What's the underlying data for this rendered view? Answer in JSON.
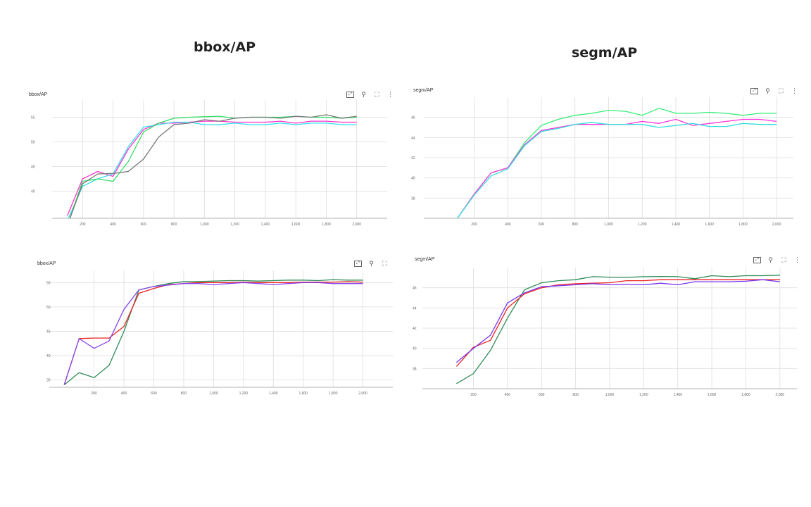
{
  "headings": {
    "left": "bbox/AP",
    "right": "segm/AP"
  },
  "toolbar_icons": [
    "fullscreen-icon",
    "pin-icon",
    "fit-domain-icon",
    "more-icon"
  ],
  "chart_data": [
    {
      "type": "line",
      "title": "bbox/AP",
      "x_ticks": [
        200,
        400,
        600,
        800,
        1000,
        1200,
        1400,
        1600,
        1800,
        2000
      ],
      "x_tick_labels": [
        "200",
        "400",
        "600",
        "800",
        "1,000",
        "1,200",
        "1,400",
        "1,600",
        "1,800",
        "2,000"
      ],
      "y_ticks": [
        40,
        45,
        50,
        55
      ],
      "y_tick_labels": [
        "40",
        "45",
        "50",
        "55"
      ],
      "xlim": [
        0,
        2200
      ],
      "ylim": [
        34.5,
        58.5
      ],
      "grid": true,
      "colors": [
        "#ff33cc",
        "#33e0ee",
        "#33dd66",
        "#777777"
      ],
      "x": [
        100,
        200,
        300,
        400,
        500,
        600,
        700,
        800,
        900,
        1000,
        1100,
        1200,
        1300,
        1400,
        1500,
        1600,
        1700,
        1800,
        1900,
        2000
      ],
      "series": [
        {
          "values": [
            35,
            42.5,
            44,
            43,
            48.5,
            52.5,
            53.8,
            53.8,
            54,
            54.2,
            54.2,
            54,
            54,
            54,
            54.2,
            53.8,
            54.2,
            54.2,
            54,
            54
          ]
        },
        {
          "values": [
            34,
            41,
            42.5,
            43.5,
            49,
            53,
            53.5,
            54,
            54,
            53.5,
            53.5,
            53.8,
            53.5,
            53.5,
            53.8,
            53.5,
            53.8,
            53.8,
            53.5,
            53.5
          ]
        },
        {
          "values": [
            33,
            42,
            42.5,
            42,
            46,
            52,
            53.8,
            54.8,
            55,
            55.1,
            55.2,
            54.8,
            55,
            55,
            55,
            55.2,
            55,
            55,
            54.8,
            55
          ]
        },
        {
          "values": [
            33,
            41.5,
            43.5,
            43.6,
            44,
            46.5,
            51,
            53.5,
            53.8,
            54.5,
            54.2,
            54.8,
            55,
            55,
            54.8,
            55.2,
            55,
            55.5,
            54.8,
            55.2
          ]
        }
      ]
    },
    {
      "type": "line",
      "title": "segm/AP",
      "x_ticks": [
        200,
        400,
        600,
        800,
        1000,
        1200,
        1400,
        1600,
        1800,
        2000
      ],
      "x_tick_labels": [
        "200",
        "400",
        "600",
        "800",
        "1,000",
        "1,200",
        "1,400",
        "1,600",
        "1,800",
        "2,000"
      ],
      "y_ticks": [
        38,
        40,
        42,
        44,
        46
      ],
      "y_tick_labels": [
        "38",
        "40",
        "42",
        "44",
        "46"
      ],
      "xlim": [
        -100,
        2100
      ],
      "ylim": [
        36,
        48
      ],
      "grid": true,
      "colors": [
        "#33ee77",
        "#ff33dd",
        "#33dddd"
      ],
      "x": [
        100,
        200,
        300,
        400,
        500,
        600,
        700,
        800,
        900,
        1000,
        1100,
        1200,
        1300,
        1400,
        1500,
        1600,
        1700,
        1800,
        1900,
        2000
      ],
      "series": [
        {
          "values": [
            36,
            38.4,
            40.5,
            41,
            43.5,
            45.2,
            45.8,
            46.2,
            46.4,
            46.7,
            46.6,
            46.2,
            46.9,
            46.4,
            46.4,
            46.5,
            46.4,
            46.2,
            46.4,
            46.4
          ]
        },
        {
          "values": [
            36,
            38.4,
            40.5,
            41,
            43.3,
            44.7,
            45,
            45.3,
            45.3,
            45.3,
            45.3,
            45.6,
            45.4,
            45.8,
            45.2,
            45.4,
            45.6,
            45.8,
            45.8,
            45.6
          ]
        },
        {
          "values": [
            36,
            38.3,
            40.2,
            40.9,
            43.2,
            44.6,
            44.9,
            45.3,
            45.5,
            45.3,
            45.3,
            45.3,
            45,
            45.2,
            45.4,
            45.1,
            45.1,
            45.4,
            45.3,
            45.3
          ]
        }
      ]
    },
    {
      "type": "line",
      "title": "bbox/AP",
      "x_ticks": [
        200,
        400,
        600,
        800,
        1000,
        1200,
        1400,
        1600,
        1800,
        2000
      ],
      "x_tick_labels": [
        "200",
        "400",
        "600",
        "800",
        "1,000",
        "1,200",
        "1,400",
        "1,600",
        "1,800",
        "2,000"
      ],
      "y_ticks": [
        35,
        40,
        45,
        50,
        55
      ],
      "y_tick_labels": [
        "35",
        "40",
        "45",
        "50",
        "55"
      ],
      "xlim": [
        -100,
        2200
      ],
      "ylim": [
        33.5,
        57.5
      ],
      "grid": true,
      "colors": [
        "#2e8b57",
        "#ee2222",
        "#8844ee"
      ],
      "x": [
        0,
        100,
        200,
        300,
        400,
        500,
        600,
        700,
        800,
        900,
        1000,
        1100,
        1200,
        1300,
        1400,
        1500,
        1600,
        1700,
        1800,
        1900,
        2000
      ],
      "series": [
        {
          "values": [
            34,
            36.5,
            35.5,
            38,
            45,
            53.5,
            54.2,
            54.8,
            55.2,
            55.2,
            55.3,
            55.4,
            55.4,
            55.3,
            55.4,
            55.5,
            55.5,
            55.4,
            55.6,
            55.5,
            55.5
          ]
        },
        {
          "values": [
            34,
            43.5,
            43.6,
            43.6,
            46,
            52.8,
            53.8,
            54.6,
            54.8,
            55,
            55,
            55,
            55.1,
            55,
            55,
            55,
            55.1,
            55.1,
            55.1,
            55.2,
            55.1
          ]
        },
        {
          "values": [
            34,
            43.5,
            41.5,
            43,
            49.5,
            53.5,
            54.2,
            54.5,
            54.8,
            54.8,
            54.6,
            54.8,
            55,
            54.8,
            54.6,
            54.8,
            55,
            55,
            54.8,
            54.8,
            54.8
          ]
        }
      ]
    },
    {
      "type": "line",
      "title": "segm/AP",
      "x_ticks": [
        200,
        400,
        600,
        800,
        1000,
        1200,
        1400,
        1600,
        1800,
        2000
      ],
      "x_tick_labels": [
        "200",
        "400",
        "600",
        "800",
        "1,000",
        "1,200",
        "1,400",
        "1,600",
        "1,800",
        "2,000"
      ],
      "y_ticks": [
        38,
        40,
        42,
        44,
        46
      ],
      "y_tick_labels": [
        "38",
        "40",
        "42",
        "44",
        "46"
      ],
      "xlim": [
        -100,
        2100
      ],
      "ylim": [
        36,
        48
      ],
      "grid": true,
      "colors": [
        "#2e8b57",
        "#ee2222",
        "#7733ee"
      ],
      "x": [
        100,
        200,
        300,
        400,
        500,
        600,
        700,
        800,
        900,
        1000,
        1100,
        1200,
        1300,
        1400,
        1500,
        1600,
        1700,
        1800,
        1900,
        2000
      ],
      "series": [
        {
          "values": [
            36.5,
            37.5,
            39.8,
            43,
            45.8,
            46.5,
            46.7,
            46.8,
            47.1,
            47.05,
            47.03,
            47.1,
            47.12,
            47.1,
            46.9,
            47.2,
            47.1,
            47.2,
            47.2,
            47.25
          ]
        },
        {
          "values": [
            38.2,
            40.1,
            40.8,
            44,
            45.4,
            46,
            46.3,
            46.4,
            46.45,
            46.5,
            46.7,
            46.7,
            46.8,
            46.8,
            46.8,
            46.8,
            46.8,
            46.8,
            46.8,
            46.8
          ]
        },
        {
          "values": [
            38.6,
            40,
            41.3,
            44.5,
            45.5,
            46.1,
            46.2,
            46.3,
            46.4,
            46.3,
            46.35,
            46.3,
            46.45,
            46.3,
            46.6,
            46.6,
            46.6,
            46.65,
            46.8,
            46.6
          ]
        }
      ]
    }
  ]
}
